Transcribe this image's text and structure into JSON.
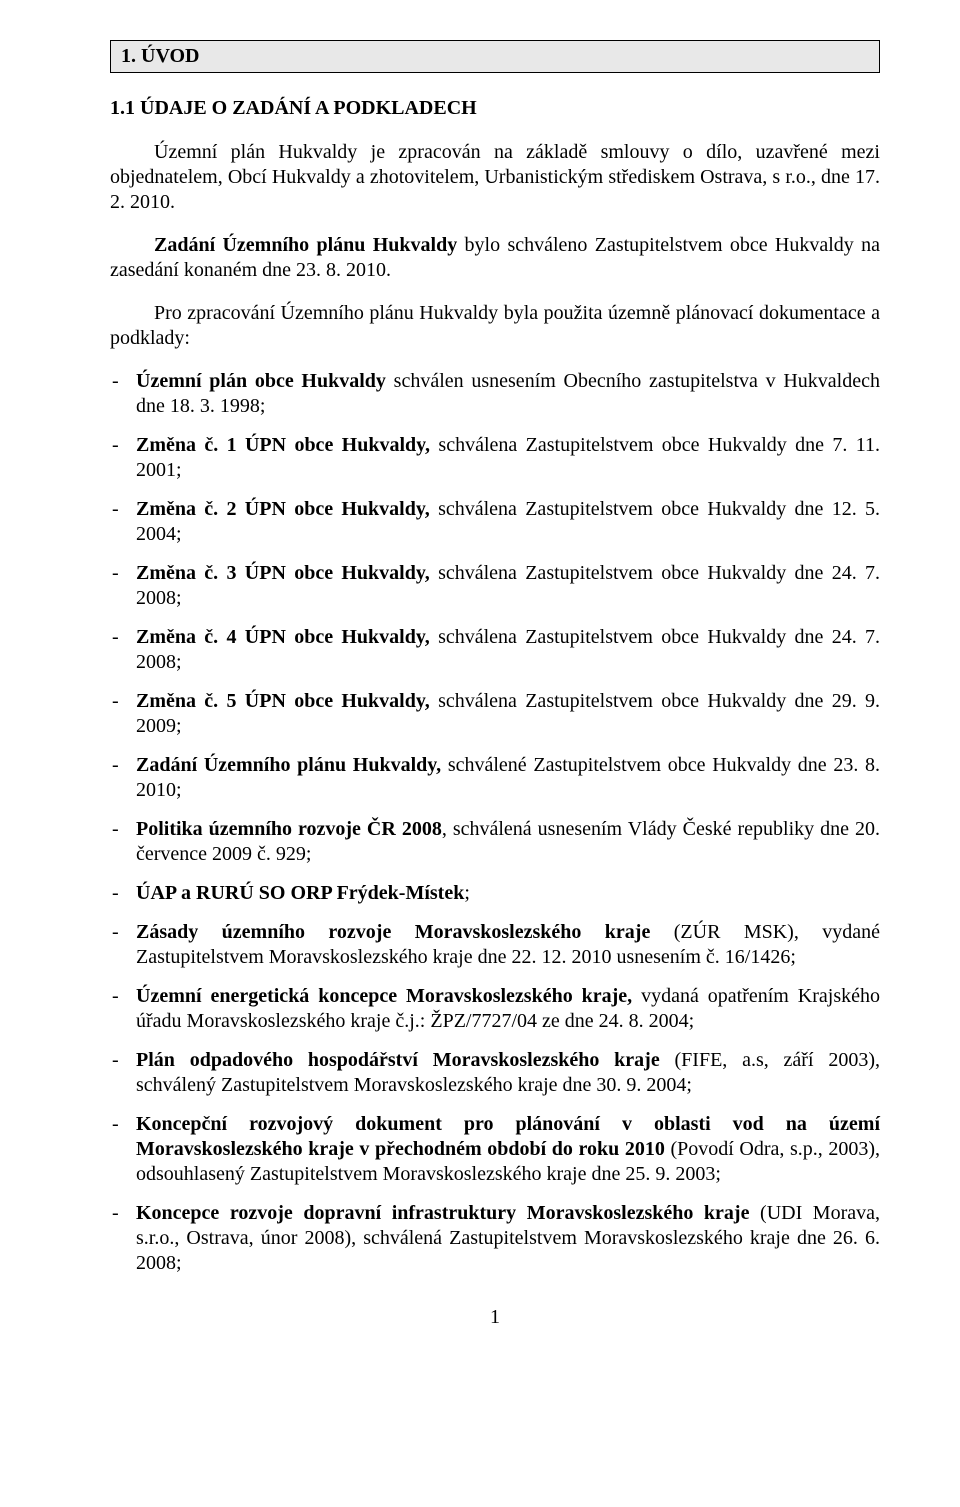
{
  "colors": {
    "page_bg": "#ffffff",
    "text": "#000000",
    "header_bg": "#e8e8e8",
    "header_border": "#000000"
  },
  "typography": {
    "font_family": "Times New Roman",
    "body_fontsize_pt": 12,
    "heading_fontsize_pt": 12
  },
  "section_header": "1. ÚVOD",
  "subheading": "1.1   ÚDAJE O ZADÁNÍ A PODKLADECH",
  "paragraphs": {
    "p1": "Územní plán Hukvaldy je zpracován na základě smlouvy o dílo, uzavřené mezi objednatelem, Obcí Hukvaldy a zhotovitelem, Urbanistickým střediskem Ostrava, s r.o., dne 17. 2. 2010.",
    "p2_pre": "Zadání Územního plánu Hukvaldy",
    "p2_post": " bylo schváleno Zastupitelstvem obce Hukvaldy na zasedání konaném dne 23. 8. 2010.",
    "p3": "Pro zpracování Územního plánu Hukvaldy byla použita územně plánovací dokumentace a podklady:"
  },
  "items": [
    {
      "bold": "Územní plán obce Hukvaldy",
      "rest": " schválen usnesením Obecního zastupitelstva v Hukvaldech dne 18. 3. 1998;"
    },
    {
      "bold": "Změna č. 1 ÚPN obce Hukvaldy,",
      "rest": " schválena Zastupitelstvem obce Hukvaldy dne 7. 11. 2001;"
    },
    {
      "bold": "Změna č. 2 ÚPN obce Hukvaldy,",
      "rest": " schválena Zastupitelstvem obce Hukvaldy dne 12. 5. 2004;"
    },
    {
      "bold": "Změna č. 3 ÚPN obce Hukvaldy,",
      "rest": " schválena Zastupitelstvem obce Hukvaldy dne 24. 7. 2008;"
    },
    {
      "bold": "Změna č. 4 ÚPN obce Hukvaldy,",
      "rest": " schválena Zastupitelstvem obce Hukvaldy dne 24. 7. 2008;"
    },
    {
      "bold": "Změna č. 5 ÚPN obce Hukvaldy,",
      "rest": " schválena Zastupitelstvem obce Hukvaldy dne 29. 9. 2009;"
    },
    {
      "bold": "Zadání Územního plánu Hukvaldy,",
      "rest": " schválené Zastupitelstvem obce Hukvaldy dne 23. 8. 2010;"
    },
    {
      "bold": "Politika územního rozvoje ČR 2008",
      "rest": ", schválená usnesením Vlády České republiky dne 20. července 2009 č. 929;"
    },
    {
      "bold": "ÚAP a RURÚ SO ORP Frýdek-Místek",
      "rest": ";"
    },
    {
      "bold": "Zásady územního rozvoje Moravskoslezského kraje",
      "rest": " (ZÚR MSK), vydané Zastupitelstvem Moravskoslezského kraje dne 22. 12. 2010 usnesením č. 16/1426;"
    },
    {
      "bold": "Územní energetická koncepce Moravskoslezského kraje,",
      "rest": " vydaná opatřením Krajského úřadu Moravskoslezského kraje č.j.: ŽPZ/7727/04 ze dne 24. 8. 2004;"
    },
    {
      "bold": "Plán odpadového hospodářství Moravskoslezského kraje",
      "rest": " (FIFE, a.s, září 2003), schválený Zastupitelstvem Moravskoslezského kraje dne 30. 9. 2004;"
    },
    {
      "bold": "Koncepční rozvojový dokument pro plánování v oblasti vod na území Moravskoslezského kraje v přechodném období do roku 2010",
      "rest": " (Povodí Odra, s.p., 2003), odsouhlasený Zastupitelstvem Moravskoslezského kraje dne 25. 9. 2003;"
    },
    {
      "bold": "Koncepce rozvoje dopravní infrastruktury Moravskoslezského kraje",
      "rest": " (UDI Morava, s.r.o., Ostrava, únor 2008), schválená Zastupitelstvem Moravskoslezského kraje dne 26. 6. 2008;"
    }
  ],
  "page_number": "1"
}
